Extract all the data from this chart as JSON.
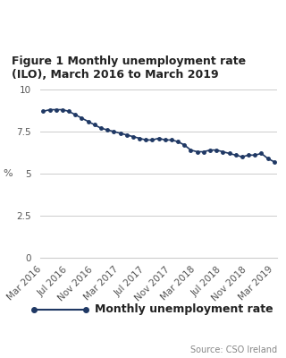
{
  "title_line1": "Figure 1 Monthly unemployment rate",
  "title_line2": "(ILO), March 2016 to March 2019",
  "ylabel": "%",
  "source": "Source: CSO Ireland",
  "legend_label": "Monthly unemployment rate",
  "line_color": "#1f3864",
  "marker": "o",
  "marker_size": 2.5,
  "line_width": 1.2,
  "ylim": [
    0,
    10
  ],
  "yticks": [
    0,
    2.5,
    5,
    7.5,
    10
  ],
  "ytick_labels": [
    "0",
    "2.5",
    "5",
    "7.5",
    "10"
  ],
  "background_color": "#ffffff",
  "grid_color": "#cccccc",
  "values": [
    8.7,
    8.8,
    8.8,
    8.8,
    8.7,
    8.5,
    8.3,
    8.1,
    7.9,
    7.7,
    7.6,
    7.5,
    7.4,
    7.3,
    7.2,
    7.1,
    7.0,
    7.0,
    7.1,
    7.0,
    7.0,
    6.9,
    6.7,
    6.4,
    6.3,
    6.3,
    6.4,
    6.4,
    6.3,
    6.2,
    6.1,
    6.0,
    6.1,
    6.1,
    6.2,
    5.9,
    5.7
  ],
  "xtick_labels": [
    "Mar 2016",
    "Jul 2016",
    "Nov 2016",
    "Mar 2017",
    "Jul 2017",
    "Nov 2017",
    "Mar 2018",
    "Jul 2018",
    "Nov 2018",
    "Mar 2019"
  ],
  "xtick_indices": [
    0,
    4,
    8,
    12,
    16,
    20,
    24,
    28,
    32,
    36
  ],
  "title_fontsize": 9,
  "tick_fontsize": 7.5,
  "legend_fontsize": 9,
  "source_fontsize": 7
}
